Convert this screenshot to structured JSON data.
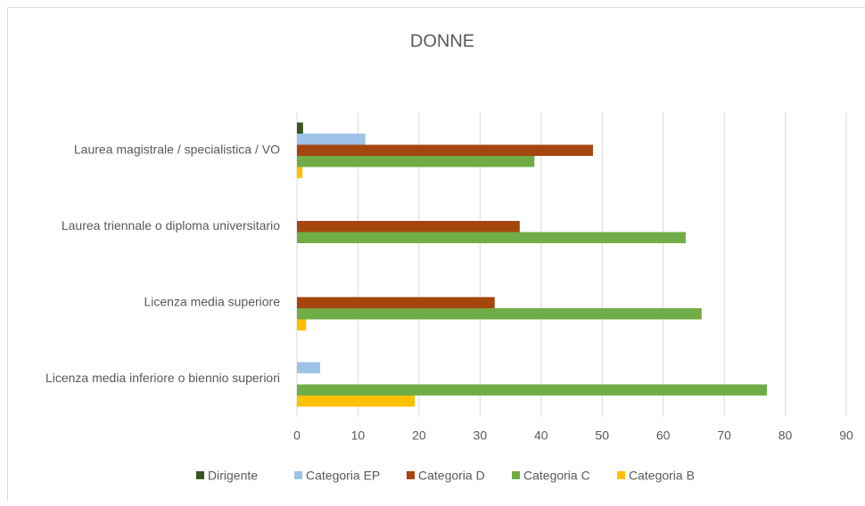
{
  "chart_data": {
    "type": "hbar",
    "title": "DONNE",
    "categories": [
      "Laurea magistrale / specialistica  / VO",
      "Laurea triennale o diploma universitario",
      "Licenza media superiore",
      "Licenza media inferiore o biennio superiori"
    ],
    "series": [
      {
        "name": "Dirigente",
        "color": "#375623",
        "values": [
          1,
          0,
          0,
          0
        ]
      },
      {
        "name": "Categoria EP",
        "color": "#9dc3e6",
        "values": [
          11.2,
          0,
          0,
          3.8
        ]
      },
      {
        "name": "Categoria D",
        "color": "#a5460e",
        "values": [
          48.5,
          36.5,
          32.4,
          0
        ]
      },
      {
        "name": "Categoria C",
        "color": "#70ad47",
        "values": [
          38.9,
          63.7,
          66.3,
          77
        ]
      },
      {
        "name": "Categoria B",
        "color": "#ffc000",
        "values": [
          0.9,
          0,
          1.5,
          19.3
        ]
      }
    ],
    "xlim": [
      0,
      90
    ],
    "xticks": [
      0,
      10,
      20,
      30,
      40,
      50,
      60,
      70,
      80,
      90
    ],
    "grid": true,
    "legend": "bottom"
  }
}
